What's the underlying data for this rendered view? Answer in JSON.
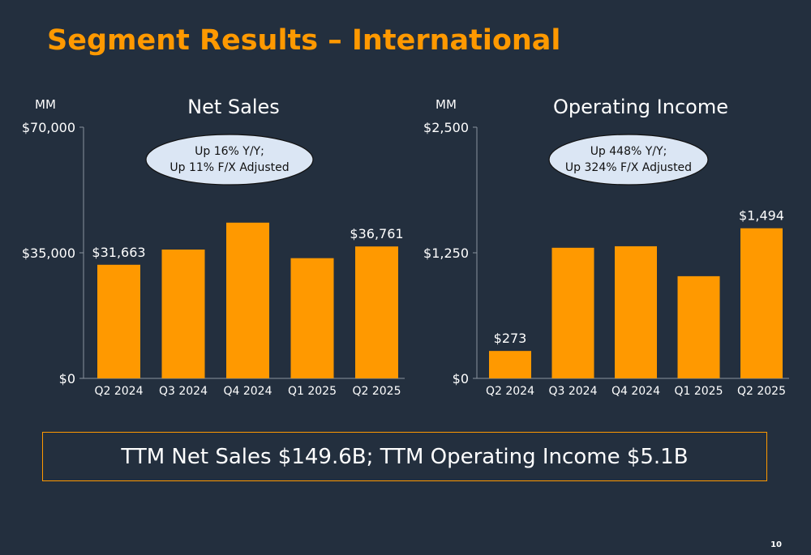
{
  "slide": {
    "title": "Segment Results – International",
    "summary": "TTM Net Sales $149.6B; TTM Operating Income $5.1B",
    "page_number": "10"
  },
  "colors": {
    "background": "#232f3e",
    "accent": "#ff9900",
    "callout_fill": "#dbe6f4"
  },
  "chart_data": [
    {
      "type": "bar",
      "title": "Net Sales",
      "unit_label": "MM",
      "categories": [
        "Q2 2024",
        "Q3 2024",
        "Q4 2024",
        "Q1 2025",
        "Q2 2025"
      ],
      "values": [
        31663,
        35900,
        43400,
        33500,
        36761
      ],
      "ylim": [
        0,
        70000
      ],
      "yticks": [
        "$0",
        "$35,000",
        "$70,000"
      ],
      "ytick_values": [
        0,
        35000,
        70000
      ],
      "data_labels": [
        "$31,663",
        null,
        null,
        null,
        "$36,761"
      ],
      "callout": [
        "Up 16% Y/Y;",
        "Up 11% F/X Adjusted"
      ],
      "grid": false,
      "color": "#ff9900"
    },
    {
      "type": "bar",
      "title": "Operating Income",
      "unit_label": "MM",
      "categories": [
        "Q2 2024",
        "Q3 2024",
        "Q4 2024",
        "Q1 2025",
        "Q2 2025"
      ],
      "values": [
        273,
        1300,
        1315,
        1017,
        1494
      ],
      "ylim": [
        0,
        2500
      ],
      "yticks": [
        "$0",
        "$1,250",
        "$2,500"
      ],
      "ytick_values": [
        0,
        1250,
        2500
      ],
      "data_labels": [
        "$273",
        null,
        null,
        null,
        "$1,494"
      ],
      "callout": [
        "Up 448% Y/Y;",
        "Up 324% F/X Adjusted"
      ],
      "grid": false,
      "color": "#ff9900"
    }
  ]
}
